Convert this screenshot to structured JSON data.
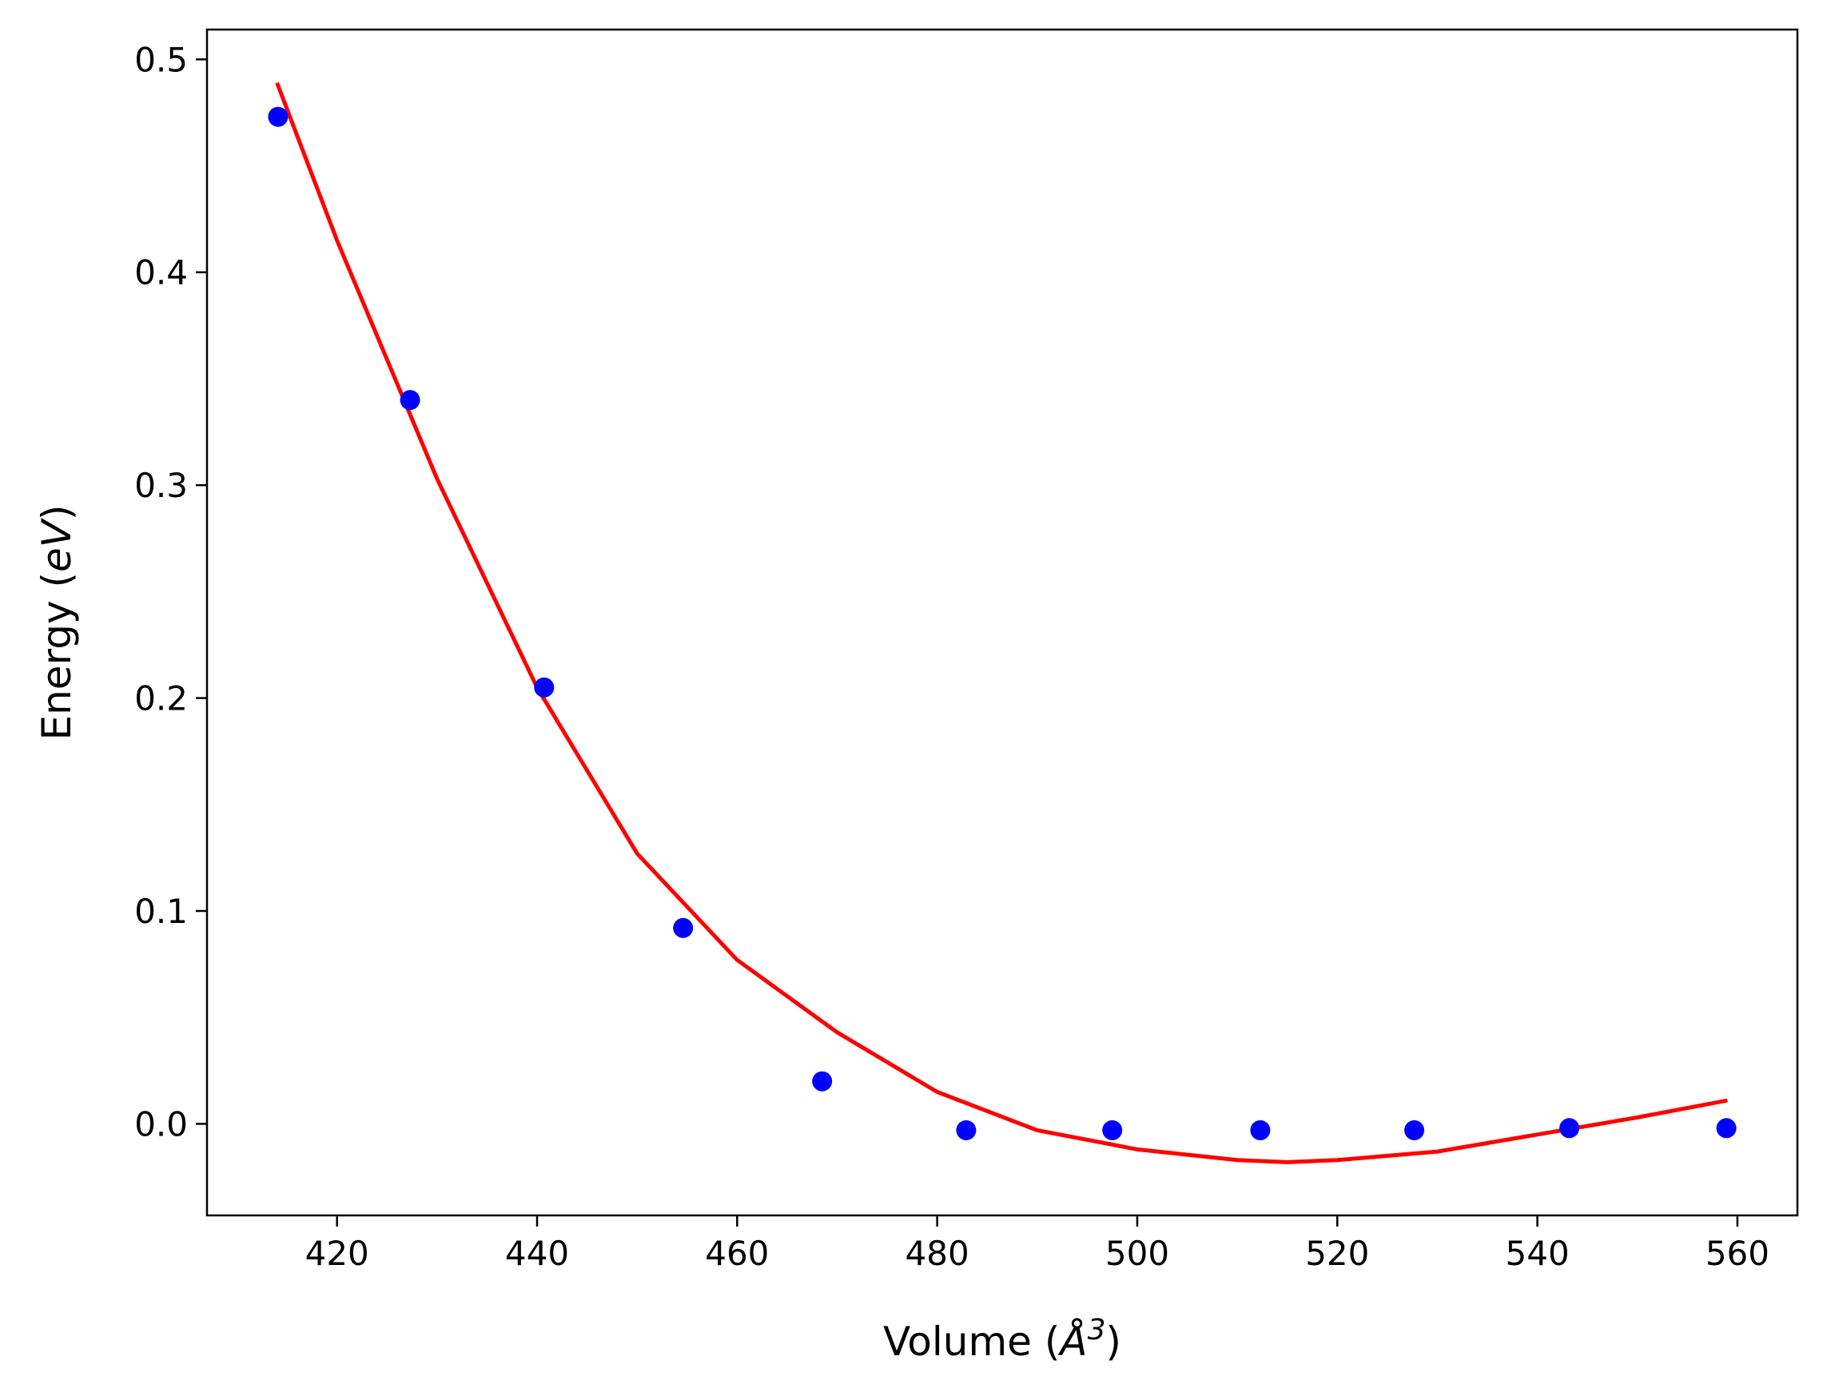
{
  "chart_data": {
    "type": "scatter",
    "xlabel": "Volume (Å³)",
    "xlabel_parts": {
      "prefix": "Volume (",
      "symbol": "Å",
      "exponent": "3",
      "suffix": ")"
    },
    "ylabel": "Energy (eV)",
    "ylabel_parts": {
      "prefix": "Energy (",
      "unit": "eV",
      "suffix": ")"
    },
    "xlim": [
      407,
      566
    ],
    "ylim": [
      -0.043,
      0.514
    ],
    "xticks": [
      420,
      440,
      460,
      480,
      500,
      520,
      540,
      560
    ],
    "yticks": [
      0.0,
      0.1,
      0.2,
      0.3,
      0.4,
      0.5
    ],
    "ytick_labels": [
      "0.0",
      "0.1",
      "0.2",
      "0.3",
      "0.4",
      "0.5"
    ],
    "grid": false,
    "series": [
      {
        "kind": "scatter",
        "color": "#0000ff",
        "x": [
          414.1,
          427.3,
          440.7,
          454.6,
          468.5,
          482.9,
          497.5,
          512.3,
          527.7,
          543.2,
          558.9
        ],
        "y": [
          0.473,
          0.34,
          0.205,
          0.092,
          0.02,
          -0.003,
          -0.003,
          -0.003,
          -0.003,
          -0.002,
          -0.002
        ]
      },
      {
        "kind": "line",
        "color": "#ff0000",
        "x": [
          414,
          420,
          430,
          440,
          450,
          460,
          470,
          480,
          490,
          500,
          510,
          515,
          520,
          530,
          540,
          550,
          559
        ],
        "y": [
          0.489,
          0.415,
          0.303,
          0.205,
          0.127,
          0.077,
          0.043,
          0.015,
          -0.003,
          -0.012,
          -0.017,
          -0.018,
          -0.017,
          -0.013,
          -0.005,
          0.003,
          0.011
        ]
      }
    ]
  }
}
